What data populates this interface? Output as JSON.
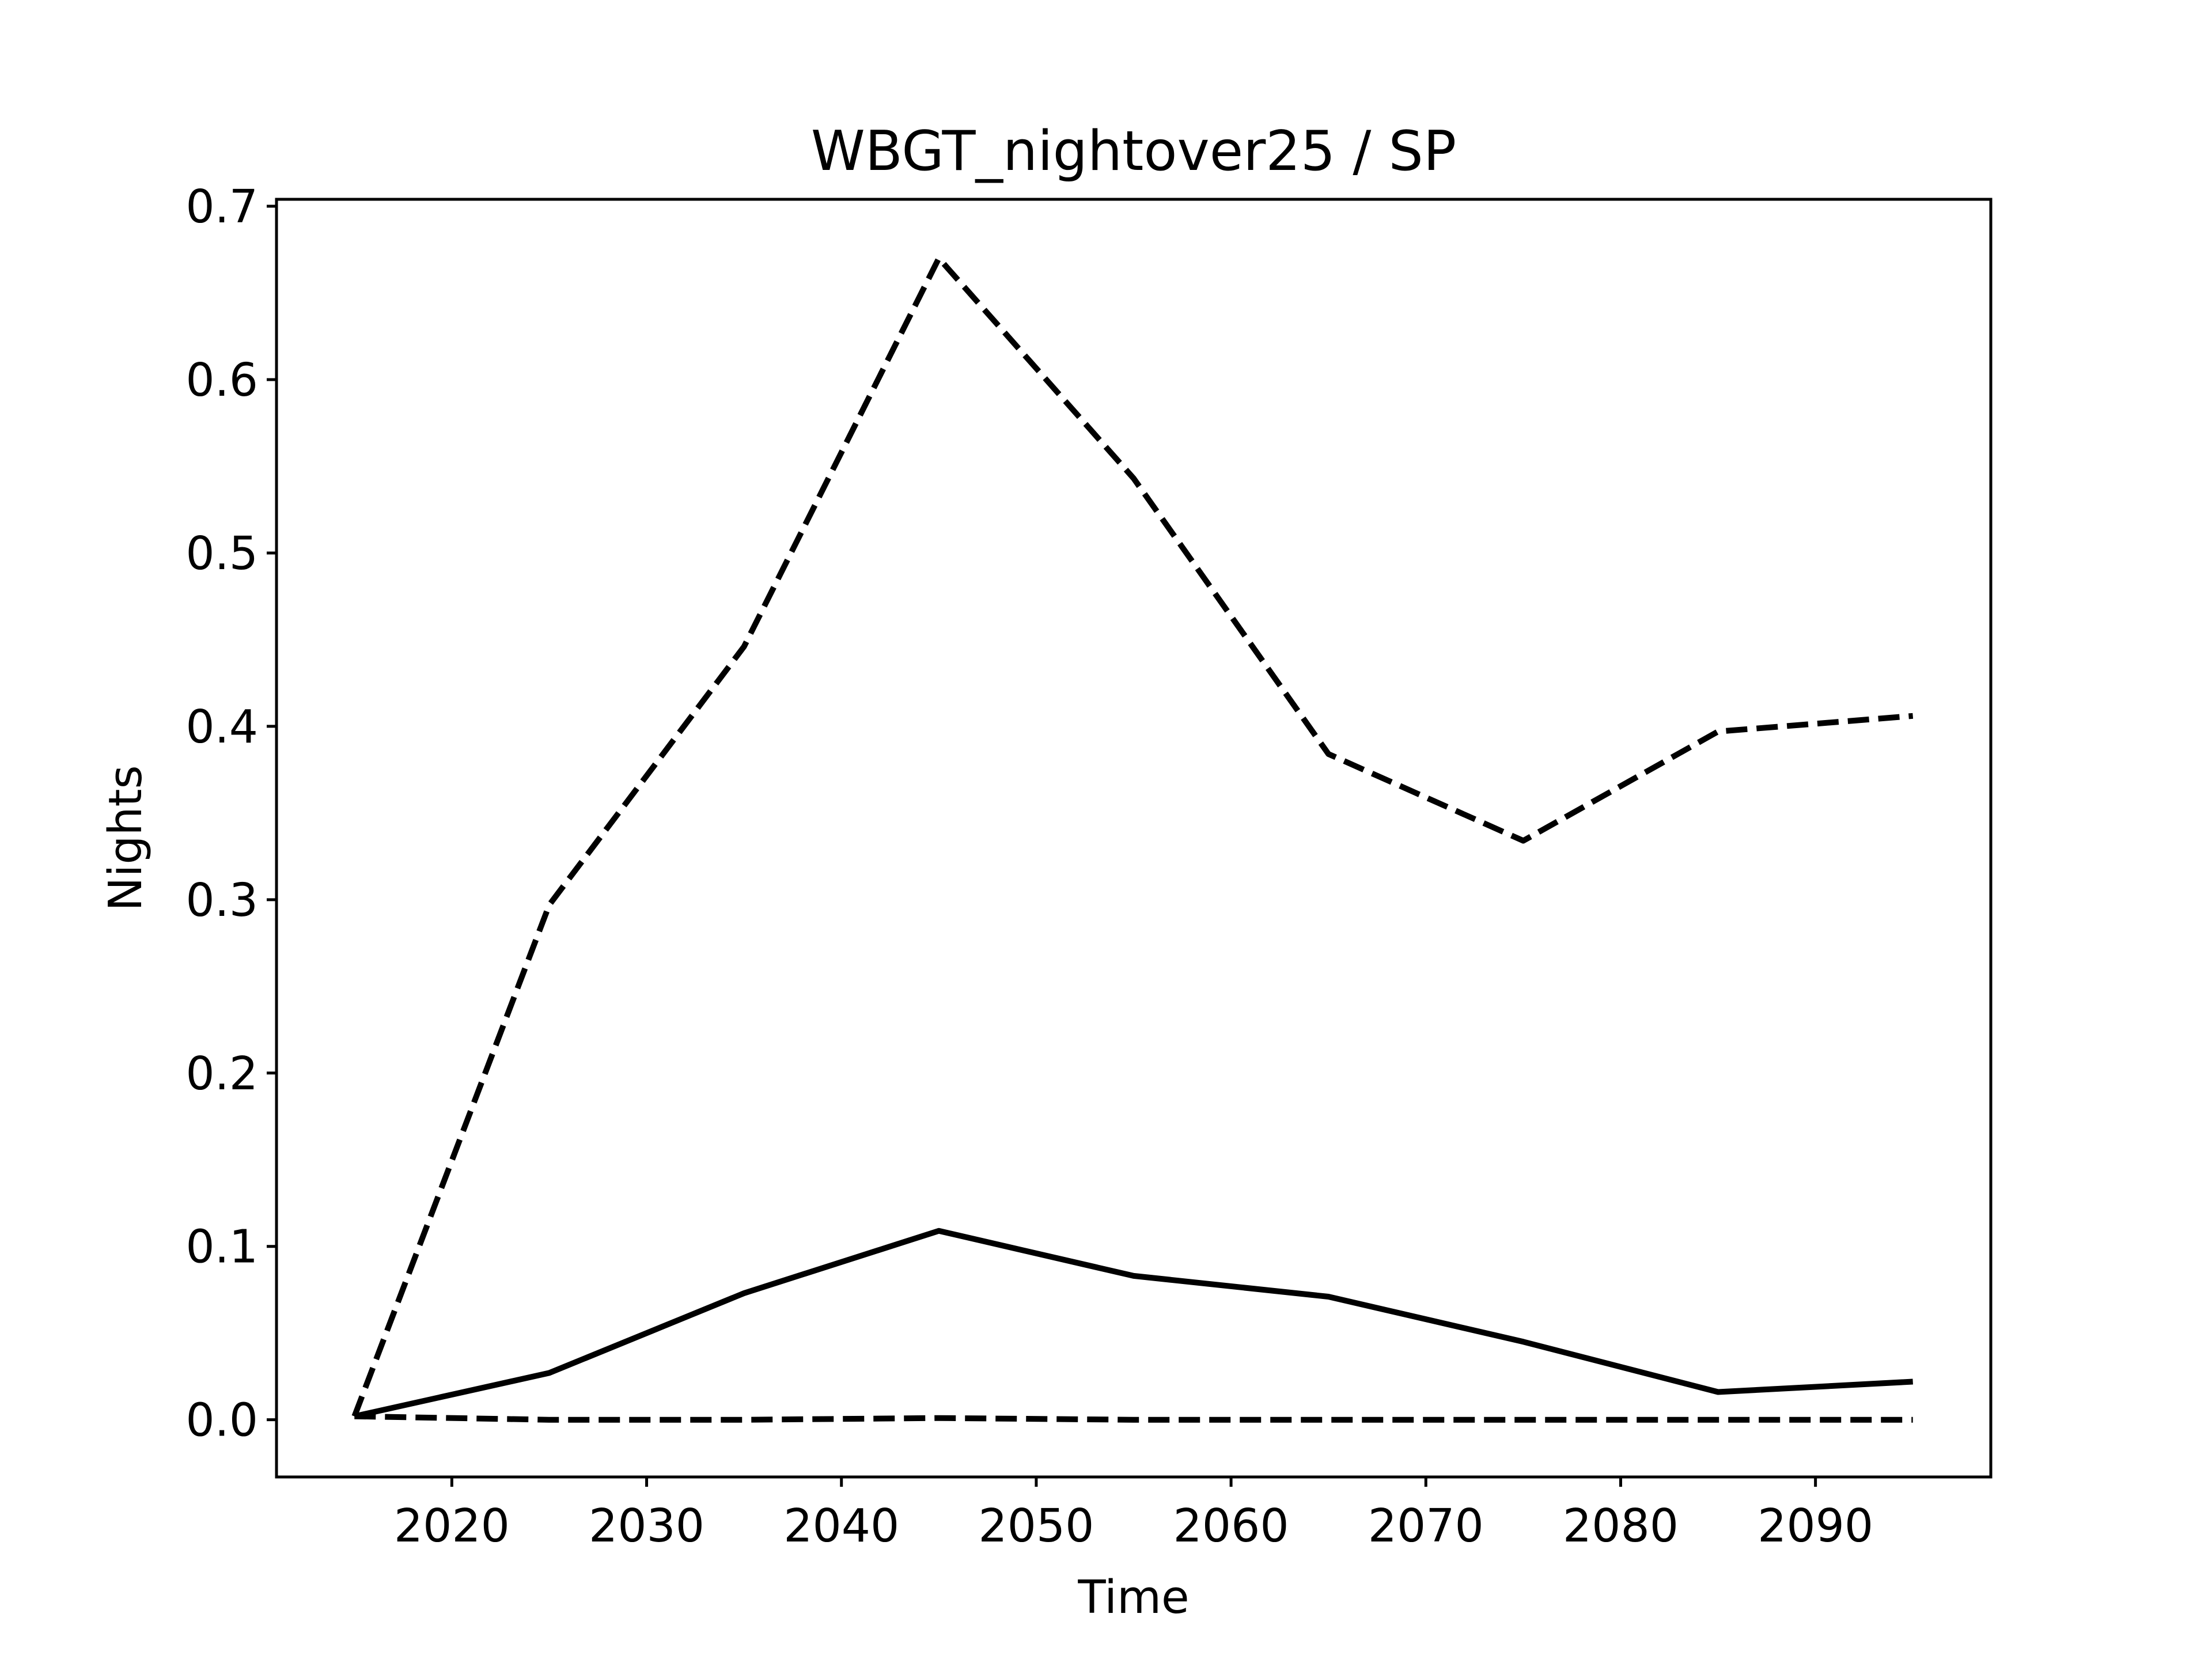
{
  "chart_data": {
    "type": "line",
    "title": "WBGT_nightover25 / SP",
    "xlabel": "Time",
    "ylabel": "Nights",
    "xlim": [
      2011,
      2099
    ],
    "ylim": [
      -0.033,
      0.704
    ],
    "xticks": [
      2020,
      2030,
      2040,
      2050,
      2060,
      2070,
      2080,
      2090
    ],
    "yticks": [
      0.0,
      0.1,
      0.2,
      0.3,
      0.4,
      0.5,
      0.6,
      0.7
    ],
    "xtick_labels": [
      "2020",
      "2030",
      "2040",
      "2050",
      "2060",
      "2070",
      "2080",
      "2090"
    ],
    "ytick_labels": [
      "0.0",
      "0.1",
      "0.2",
      "0.3",
      "0.4",
      "0.5",
      "0.6",
      "0.7"
    ],
    "grid": false,
    "legend": false,
    "x": [
      2015,
      2025,
      2035,
      2045,
      2055,
      2065,
      2075,
      2085,
      2095
    ],
    "series": [
      {
        "style": "dashed",
        "color": "#000000",
        "values": [
          0.002,
          0.297,
          0.446,
          0.67,
          0.543,
          0.384,
          0.334,
          0.397,
          0.406
        ]
      },
      {
        "style": "solid",
        "color": "#000000",
        "values": [
          0.002,
          0.027,
          0.073,
          0.109,
          0.083,
          0.071,
          0.045,
          0.016,
          0.022
        ]
      },
      {
        "style": "dashed",
        "color": "#000000",
        "values": [
          0.002,
          0.0,
          0.0,
          0.001,
          0.0,
          0.0,
          0.0,
          0.0,
          0.0
        ]
      }
    ]
  }
}
